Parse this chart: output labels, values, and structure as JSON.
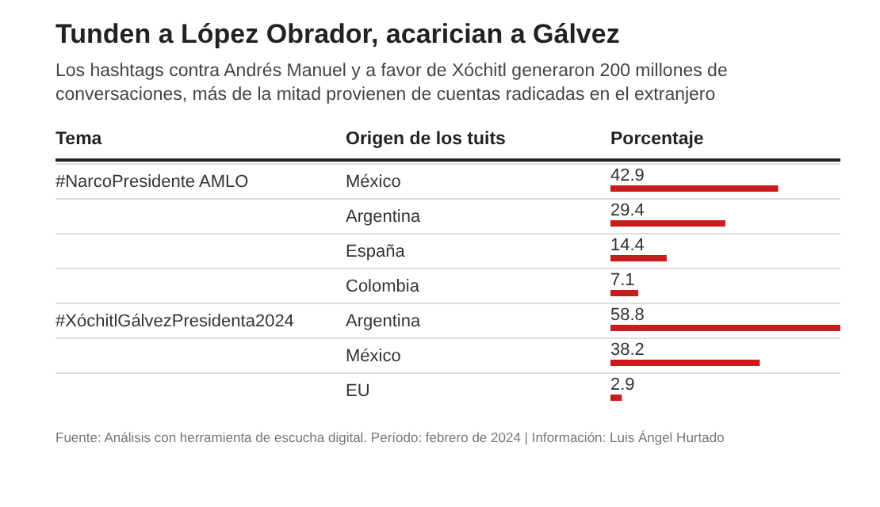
{
  "chart_data": {
    "type": "bar",
    "orientation": "horizontal",
    "title": "Tunden a López Obrador, acarician a Gálvez",
    "subtitle": "Los hashtags contra Andrés Manuel y a favor de Xóchitl generaron 200 millones de conversaciones, más de la mitad provienen de cuentas radicadas en el extranjero",
    "categories": [
      "México",
      "Argentina",
      "España",
      "Colombia",
      "Argentina",
      "México",
      "EU"
    ],
    "values": [
      42.9,
      29.4,
      14.4,
      7.1,
      58.8,
      38.2,
      2.9
    ],
    "color": "#c71e1d",
    "data_labels": true,
    "annotations": [
      "Tema",
      "Origen de los tuits",
      "Porcentaje",
      "#NarcoPresidente AMLO",
      "#XóchitlGálvezPresidenta2024",
      "Fuente: Análisis con herramienta de escucha digital. Período: febrero de 2024 | Información: Luis Ángel Hurtado"
    ]
  }
}
